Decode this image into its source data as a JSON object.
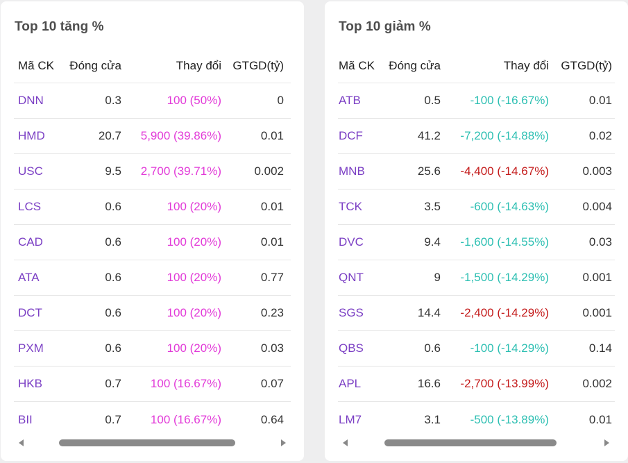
{
  "gainers": {
    "title": "Top 10 tăng %",
    "headers": {
      "symbol": "Mã CK",
      "close": "Đóng cửa",
      "change": "Thay đổi",
      "value": "GTGD(tỷ)"
    },
    "rows": [
      {
        "symbol": "DNN",
        "close": "0.3",
        "change": "100 (50%)",
        "value": "0"
      },
      {
        "symbol": "HMD",
        "close": "20.7",
        "change": "5,900 (39.86%)",
        "value": "0.01"
      },
      {
        "symbol": "USC",
        "close": "9.5",
        "change": "2,700 (39.71%)",
        "value": "0.002"
      },
      {
        "symbol": "LCS",
        "close": "0.6",
        "change": "100 (20%)",
        "value": "0.01"
      },
      {
        "symbol": "CAD",
        "close": "0.6",
        "change": "100 (20%)",
        "value": "0.01"
      },
      {
        "symbol": "ATA",
        "close": "0.6",
        "change": "100 (20%)",
        "value": "0.77"
      },
      {
        "symbol": "DCT",
        "close": "0.6",
        "change": "100 (20%)",
        "value": "0.23"
      },
      {
        "symbol": "PXM",
        "close": "0.6",
        "change": "100 (20%)",
        "value": "0.03"
      },
      {
        "symbol": "HKB",
        "close": "0.7",
        "change": "100 (16.67%)",
        "value": "0.07"
      },
      {
        "symbol": "BII",
        "close": "0.7",
        "change": "100 (16.67%)",
        "value": "0.64"
      }
    ]
  },
  "losers": {
    "title": "Top 10 giảm %",
    "headers": {
      "symbol": "Mã CK",
      "close": "Đóng cửa",
      "change": "Thay đổi",
      "value": "GTGD(tỷ)"
    },
    "rows": [
      {
        "symbol": "ATB",
        "close": "0.5",
        "change": "-100 (-16.67%)",
        "value": "0.01",
        "tone": "teal"
      },
      {
        "symbol": "DCF",
        "close": "41.2",
        "change": "-7,200 (-14.88%)",
        "value": "0.02",
        "tone": "teal"
      },
      {
        "symbol": "MNB",
        "close": "25.6",
        "change": "-4,400 (-14.67%)",
        "value": "0.003",
        "tone": "red"
      },
      {
        "symbol": "TCK",
        "close": "3.5",
        "change": "-600 (-14.63%)",
        "value": "0.004",
        "tone": "teal"
      },
      {
        "symbol": "DVC",
        "close": "9.4",
        "change": "-1,600 (-14.55%)",
        "value": "0.03",
        "tone": "teal"
      },
      {
        "symbol": "QNT",
        "close": "9",
        "change": "-1,500 (-14.29%)",
        "value": "0.001",
        "tone": "teal"
      },
      {
        "symbol": "SGS",
        "close": "14.4",
        "change": "-2,400 (-14.29%)",
        "value": "0.001",
        "tone": "red"
      },
      {
        "symbol": "QBS",
        "close": "0.6",
        "change": "-100 (-14.29%)",
        "value": "0.14",
        "tone": "teal"
      },
      {
        "symbol": "APL",
        "close": "16.6",
        "change": "-2,700 (-13.99%)",
        "value": "0.002",
        "tone": "red"
      },
      {
        "symbol": "LM7",
        "close": "3.1",
        "change": "-500 (-13.89%)",
        "value": "0.01",
        "tone": "teal"
      }
    ]
  },
  "colors": {
    "symbol": "#7b3fc4",
    "gain": "#e23ad8",
    "loss_teal": "#2cbfb2",
    "loss_red": "#c41a1a"
  }
}
